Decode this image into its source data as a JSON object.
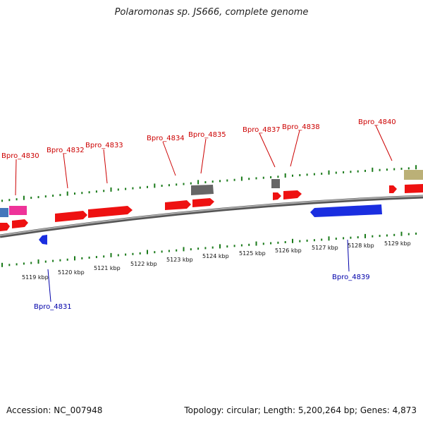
{
  "title": "Polaromonas sp. JS666, complete genome",
  "footer": {
    "accession": "Accession: NC_007948",
    "summary": "Topology: circular; Length: 5,200,264 bp; Genes: 4,873"
  },
  "axis": {
    "unit": "kbp",
    "ticks": [
      "5119 kbp",
      "5120 kbp",
      "5121 kbp",
      "5122 kbp",
      "5123 kbp",
      "5124 kbp",
      "5125 kbp",
      "5126 kbp",
      "5127 kbp",
      "5128 kbp",
      "5129 kbp"
    ]
  },
  "colors": {
    "forward_label": "#cc0000",
    "reverse_label": "#0000aa",
    "backbone": "#888888",
    "tick": "#1a7a1a",
    "gene_red": "#ee1111",
    "gene_blue": "#1a2ee0",
    "gene_gray": "#666666",
    "gene_pink": "#ee3399",
    "gene_steel": "#4477bb",
    "gene_tan": "#bbb077"
  },
  "labels": {
    "forward": [
      "Bpro_4830",
      "Bpro_4832",
      "Bpro_4833",
      "Bpro_4834",
      "Bpro_4835",
      "Bpro_4837",
      "Bpro_4838",
      "Bpro_4840"
    ],
    "reverse": [
      "Bpro_4831",
      "Bpro_4839"
    ]
  }
}
